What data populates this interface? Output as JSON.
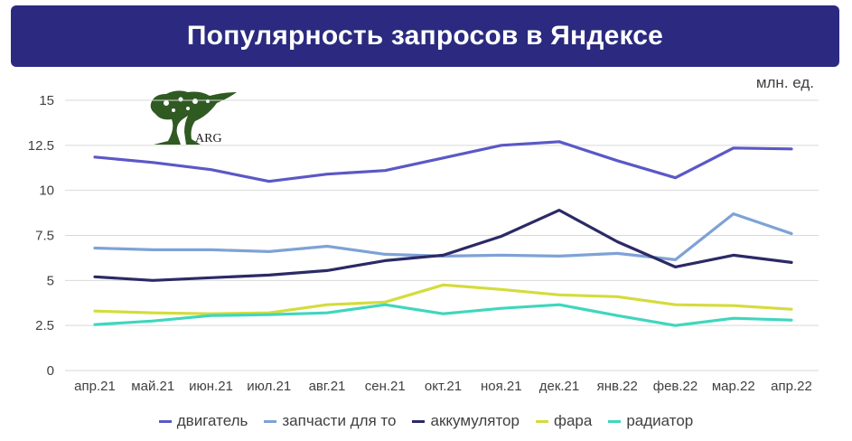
{
  "title": "Популярность запросов в Яндексе",
  "unit": "млн. ед.",
  "logo": {
    "text": "ARG",
    "icon": "tree-logo-icon"
  },
  "chart_data": {
    "type": "line",
    "title": "Популярность запросов в Яндексе",
    "ylabel": "млн. ед.",
    "ylim": [
      0,
      15
    ],
    "yticks": [
      "0",
      "2.5",
      "5",
      "7.5",
      "10",
      "12.5",
      "15"
    ],
    "grid": true,
    "legend_position": "bottom",
    "categories": [
      "апр.21",
      "май.21",
      "июн.21",
      "июл.21",
      "авг.21",
      "сен.21",
      "окт.21",
      "ноя.21",
      "дек.21",
      "янв.22",
      "фев.22",
      "мар.22",
      "апр.22"
    ],
    "series": [
      {
        "name": "двигатель",
        "color": "#5b58c6",
        "values": [
          11.85,
          11.55,
          11.15,
          10.5,
          10.9,
          11.1,
          11.8,
          12.5,
          12.7,
          11.65,
          10.7,
          12.35,
          12.3
        ]
      },
      {
        "name": "запчасти для то",
        "color": "#7ea2d6",
        "values": [
          6.8,
          6.7,
          6.7,
          6.6,
          6.9,
          6.45,
          6.35,
          6.4,
          6.35,
          6.5,
          6.15,
          8.7,
          7.6
        ]
      },
      {
        "name": "аккумулятор",
        "color": "#2b2a66",
        "values": [
          5.2,
          5.0,
          5.15,
          5.3,
          5.55,
          6.1,
          6.4,
          7.45,
          8.9,
          7.15,
          5.75,
          6.4,
          6.0
        ]
      },
      {
        "name": "фара",
        "color": "#d4dc3c",
        "values": [
          3.3,
          3.2,
          3.15,
          3.2,
          3.65,
          3.8,
          4.75,
          4.5,
          4.2,
          4.1,
          3.65,
          3.6,
          3.4
        ]
      },
      {
        "name": "радиатор",
        "color": "#3fd6be",
        "values": [
          2.55,
          2.75,
          3.05,
          3.1,
          3.2,
          3.65,
          3.15,
          3.45,
          3.65,
          3.05,
          2.5,
          2.9,
          2.8
        ]
      }
    ]
  }
}
